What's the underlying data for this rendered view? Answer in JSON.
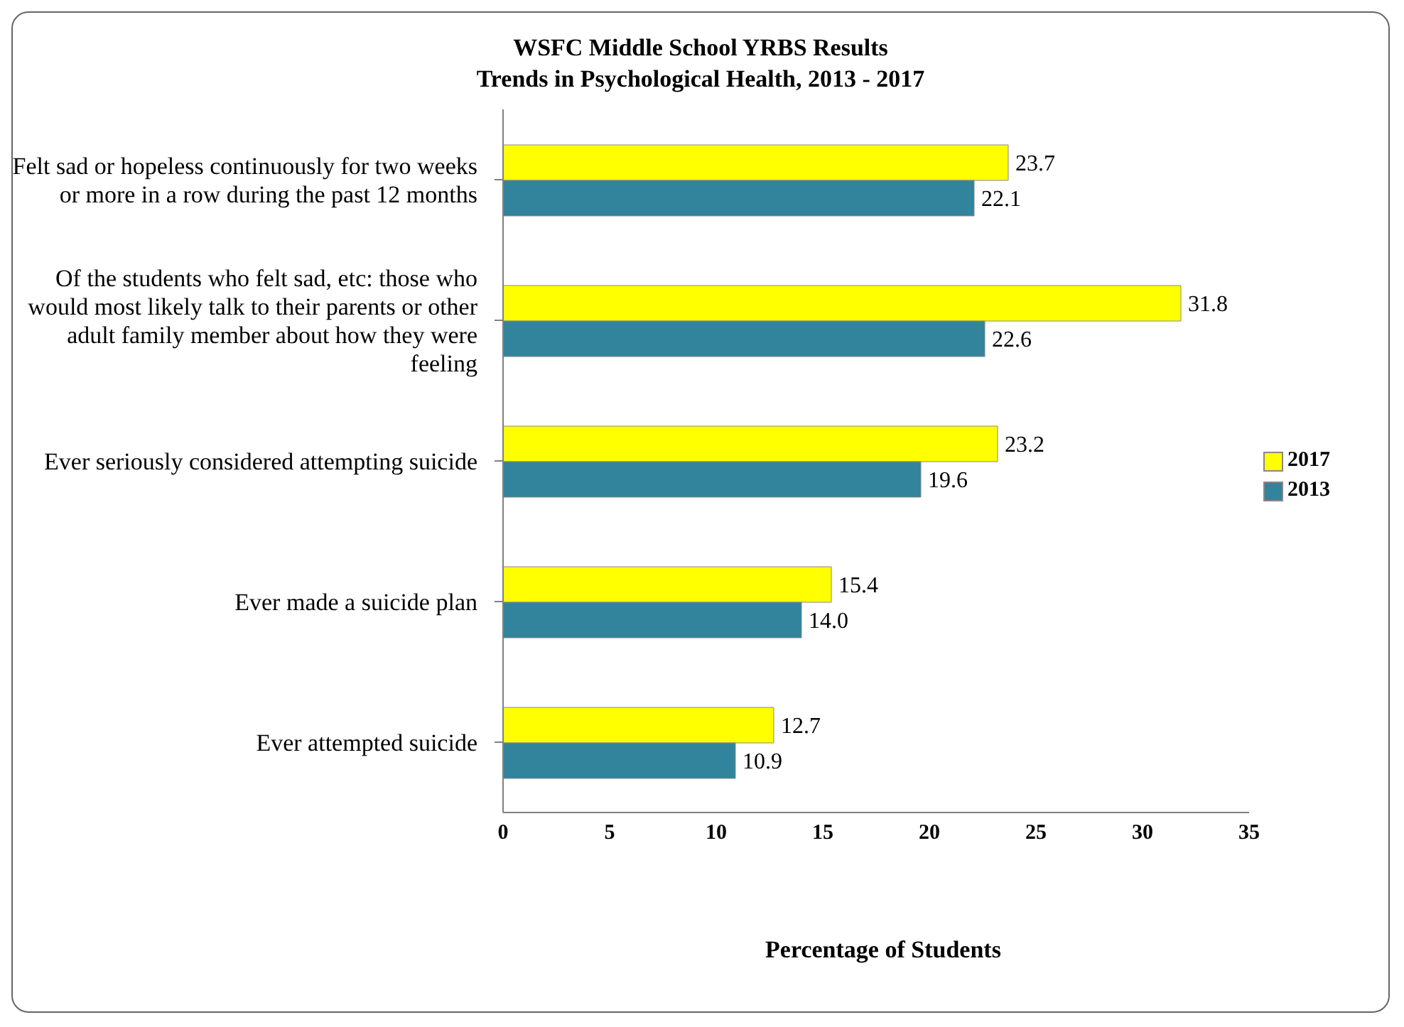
{
  "chart_data": {
    "type": "bar",
    "orientation": "horizontal",
    "title": "WSFC Middle School YRBS Results",
    "subtitle": "Trends in Psychological Health, 2013 - 2017",
    "xlabel": "Percentage of Students",
    "categories": [
      "Felt sad or hopeless continuously for two weeks or more in a row during the past 12 months",
      "Of the students who felt sad, etc:  those who would most likely talk to their parents or other adult family member about how they were feeling",
      "Ever seriously considered attempting suicide",
      "Ever made a suicide plan",
      "Ever attempted suicide"
    ],
    "series": [
      {
        "name": "2017",
        "color": "#ffff00",
        "values": [
          23.7,
          31.8,
          23.2,
          15.4,
          12.7
        ],
        "value_labels": [
          "23.7",
          "31.8",
          "23.2",
          "15.4",
          "12.7"
        ]
      },
      {
        "name": "2013",
        "color": "#31849b",
        "values": [
          22.1,
          22.6,
          19.6,
          14.0,
          10.9
        ],
        "value_labels": [
          "22.1",
          "22.6",
          "19.6",
          "14.0",
          "10.9"
        ]
      }
    ],
    "xlim": [
      0,
      35
    ],
    "xticks": [
      0,
      5,
      10,
      15,
      20,
      25,
      30,
      35
    ],
    "grid": false,
    "legend": "right"
  }
}
